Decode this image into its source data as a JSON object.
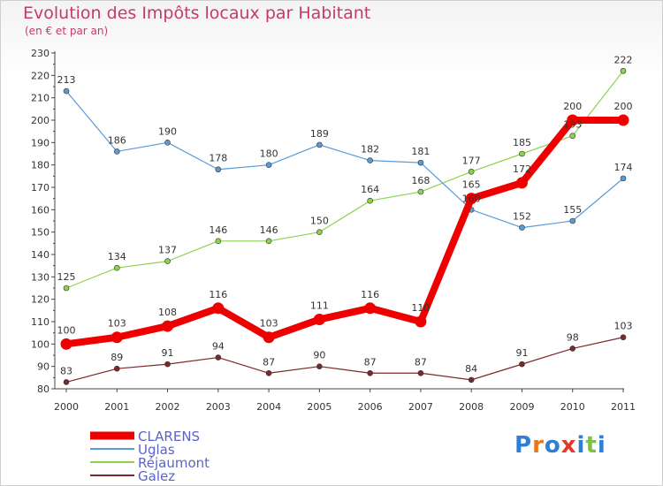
{
  "chart_data": {
    "type": "line",
    "title": "Evolution des Impôts locaux par Habitant",
    "subtitle": "(en € et par an)",
    "x": [
      "2000",
      "2001",
      "2002",
      "2003",
      "2004",
      "2005",
      "2006",
      "2007",
      "2008",
      "2009",
      "2010",
      "2011"
    ],
    "ylim": [
      80,
      230
    ],
    "yticks": [
      80,
      90,
      100,
      110,
      120,
      130,
      140,
      150,
      160,
      170,
      180,
      190,
      200,
      210,
      220,
      230
    ],
    "grid": false,
    "legend_position": "bottom-left",
    "series": [
      {
        "name": "CLARENS",
        "color": "#ee0000",
        "values": [
          100,
          103,
          108,
          116,
          103,
          111,
          116,
          110,
          165,
          172,
          200,
          200
        ]
      },
      {
        "name": "Uglas",
        "color": "#5b9bd5",
        "values": [
          213,
          186,
          190,
          178,
          180,
          189,
          182,
          181,
          160,
          152,
          155,
          174
        ]
      },
      {
        "name": "Réjaumont",
        "color": "#8fd14f",
        "values": [
          125,
          134,
          137,
          146,
          146,
          150,
          164,
          168,
          177,
          185,
          193,
          222
        ]
      },
      {
        "name": "Galez",
        "color": "#7a2a2a",
        "values": [
          83,
          89,
          91,
          94,
          87,
          90,
          87,
          87,
          84,
          91,
          98,
          103
        ]
      }
    ]
  },
  "logo": {
    "parts": [
      "P",
      "r",
      "o",
      "x",
      "i",
      "t",
      "i"
    ],
    "colors": [
      "#2f7fd6",
      "#e8781c",
      "#2f7fd6",
      "#e23b2b",
      "#2f7fd6",
      "#7fc241",
      "#2f7fd6"
    ]
  }
}
